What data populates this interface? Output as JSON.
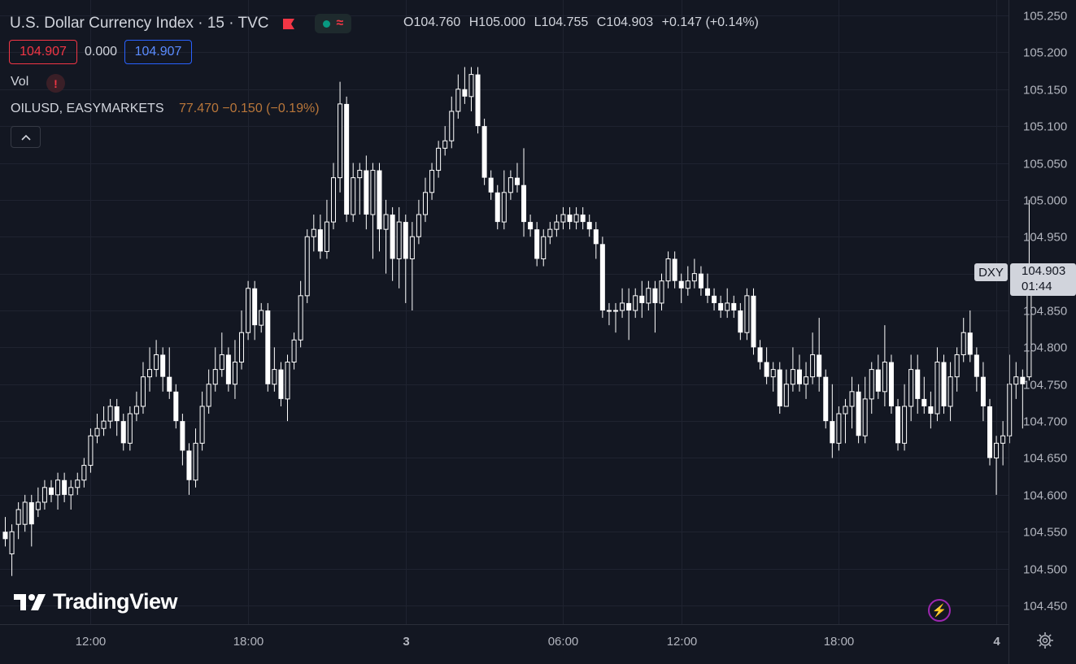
{
  "header": {
    "symbol_title": "U.S. Dollar Currency Index · 15 · TVC",
    "ohlc": {
      "open": "O104.760",
      "high": "H105.000",
      "low": "L104.755",
      "close": "C104.903",
      "change": "+0.147 (+0.14%)"
    },
    "bid": "104.907",
    "spread": "0.000",
    "ask": "104.907"
  },
  "indicators": {
    "volume_label": "Vol",
    "warning_glyph": "!",
    "compare_symbol": "OILUSD, EASYMARKETS",
    "compare_values": "77.470 −0.150 (−0.19%)"
  },
  "branding": {
    "logo_text": "TradingView"
  },
  "price_scale": {
    "symbol_tag": "DXY",
    "last_price": "104.903",
    "countdown": "01:44"
  },
  "colors": {
    "background": "#131722",
    "candle": "#ffffff",
    "grid": "#1e222d",
    "text": "#d1d4dc",
    "bearish_accent": "#f23645",
    "blue_accent": "#2962ff",
    "oil": "#b8763a"
  },
  "icons": [
    "flag-icon",
    "wave-icon",
    "warning-icon",
    "chevron-up-icon",
    "tradingview-logo-icon",
    "lightning-icon",
    "gear-icon"
  ],
  "chart_data": {
    "type": "candlestick",
    "title": "U.S. Dollar Currency Index · 15 · TVC",
    "ylim": [
      104.43,
      105.27
    ],
    "yticks": [
      104.45,
      104.5,
      104.55,
      104.6,
      104.65,
      104.7,
      104.75,
      104.8,
      104.85,
      104.9,
      104.95,
      105.0,
      105.05,
      105.1,
      105.15,
      105.2,
      105.25
    ],
    "ytick_labels": [
      "104.450",
      "104.500",
      "104.550",
      "104.600",
      "104.650",
      "104.700",
      "104.750",
      "104.800",
      "104.850",
      "104.900",
      "104.950",
      "105.000",
      "105.050",
      "105.100",
      "105.150",
      "105.200",
      "105.250"
    ],
    "xticks": [
      {
        "index": 13,
        "label": "12:00"
      },
      {
        "index": 37,
        "label": "18:00"
      },
      {
        "index": 61,
        "label": "3"
      },
      {
        "index": 85,
        "label": "06:00"
      },
      {
        "index": 103,
        "label": "12:00"
      },
      {
        "index": 127,
        "label": "18:00"
      },
      {
        "index": 151,
        "label": "4"
      }
    ],
    "candles": [
      [
        104.55,
        104.54,
        104.57,
        104.53
      ],
      [
        104.52,
        104.55,
        104.56,
        104.49
      ],
      [
        104.56,
        104.58,
        104.59,
        104.54
      ],
      [
        104.56,
        104.59,
        104.6,
        104.55
      ],
      [
        104.59,
        104.56,
        104.6,
        104.53
      ],
      [
        104.58,
        104.59,
        104.61,
        104.57
      ],
      [
        104.59,
        104.61,
        104.62,
        104.58
      ],
      [
        104.61,
        104.6,
        104.62,
        104.59
      ],
      [
        104.6,
        104.62,
        104.63,
        104.58
      ],
      [
        104.62,
        104.6,
        104.63,
        104.59
      ],
      [
        104.6,
        104.61,
        104.62,
        104.58
      ],
      [
        104.61,
        104.62,
        104.63,
        104.6
      ],
      [
        104.62,
        104.64,
        104.65,
        104.61
      ],
      [
        104.64,
        104.68,
        104.69,
        104.63
      ],
      [
        104.68,
        104.69,
        104.71,
        104.67
      ],
      [
        104.69,
        104.7,
        104.72,
        104.68
      ],
      [
        104.7,
        104.72,
        104.73,
        104.69
      ],
      [
        104.72,
        104.7,
        104.73,
        104.68
      ],
      [
        104.7,
        104.67,
        104.71,
        104.66
      ],
      [
        104.67,
        104.71,
        104.72,
        104.66
      ],
      [
        104.71,
        104.72,
        104.74,
        104.7
      ],
      [
        104.72,
        104.76,
        104.78,
        104.71
      ],
      [
        104.76,
        104.77,
        104.8,
        104.74
      ],
      [
        104.77,
        104.79,
        104.81,
        104.76
      ],
      [
        104.79,
        104.76,
        104.8,
        104.74
      ],
      [
        104.76,
        104.74,
        104.8,
        104.73
      ],
      [
        104.74,
        104.7,
        104.75,
        104.69
      ],
      [
        104.7,
        104.66,
        104.71,
        104.64
      ],
      [
        104.66,
        104.62,
        104.67,
        104.6
      ],
      [
        104.62,
        104.67,
        104.69,
        104.61
      ],
      [
        104.67,
        104.72,
        104.74,
        104.66
      ],
      [
        104.72,
        104.75,
        104.77,
        104.71
      ],
      [
        104.75,
        104.77,
        104.8,
        104.74
      ],
      [
        104.77,
        104.79,
        104.82,
        104.76
      ],
      [
        104.79,
        104.75,
        104.8,
        104.74
      ],
      [
        104.75,
        104.78,
        104.81,
        104.73
      ],
      [
        104.78,
        104.82,
        104.85,
        104.77
      ],
      [
        104.82,
        104.88,
        104.89,
        104.81
      ],
      [
        104.88,
        104.83,
        104.89,
        104.81
      ],
      [
        104.83,
        104.85,
        104.86,
        104.82
      ],
      [
        104.85,
        104.75,
        104.86,
        104.74
      ],
      [
        104.75,
        104.77,
        104.8,
        104.74
      ],
      [
        104.77,
        104.73,
        104.78,
        104.72
      ],
      [
        104.73,
        104.78,
        104.79,
        104.7
      ],
      [
        104.78,
        104.81,
        104.82,
        104.77
      ],
      [
        104.81,
        104.87,
        104.89,
        104.8
      ],
      [
        104.87,
        104.95,
        104.96,
        104.86
      ],
      [
        104.95,
        104.96,
        104.98,
        104.93
      ],
      [
        104.96,
        104.93,
        104.98,
        104.92
      ],
      [
        104.93,
        104.97,
        105.0,
        104.92
      ],
      [
        104.97,
        105.03,
        105.05,
        104.96
      ],
      [
        105.03,
        105.13,
        105.16,
        105.01
      ],
      [
        105.13,
        104.98,
        105.14,
        104.97
      ],
      [
        104.98,
        105.03,
        105.05,
        104.97
      ],
      [
        105.03,
        105.04,
        105.05,
        104.98
      ],
      [
        105.04,
        104.98,
        105.06,
        104.96
      ],
      [
        104.98,
        105.04,
        105.05,
        104.92
      ],
      [
        105.04,
        104.96,
        105.05,
        104.93
      ],
      [
        104.96,
        104.98,
        105.0,
        104.9
      ],
      [
        104.98,
        104.92,
        104.99,
        104.89
      ],
      [
        104.92,
        104.97,
        104.99,
        104.88
      ],
      [
        104.97,
        104.92,
        104.98,
        104.86
      ],
      [
        104.92,
        104.95,
        104.97,
        104.85
      ],
      [
        104.95,
        104.98,
        105.0,
        104.94
      ],
      [
        104.98,
        105.01,
        105.03,
        104.97
      ],
      [
        105.01,
        105.04,
        105.05,
        105.0
      ],
      [
        105.04,
        105.07,
        105.08,
        105.03
      ],
      [
        105.07,
        105.08,
        105.1,
        105.06
      ],
      [
        105.08,
        105.12,
        105.14,
        105.07
      ],
      [
        105.12,
        105.15,
        105.17,
        105.11
      ],
      [
        105.15,
        105.14,
        105.18,
        105.13
      ],
      [
        105.14,
        105.17,
        105.18,
        105.12
      ],
      [
        105.17,
        105.1,
        105.18,
        105.09
      ],
      [
        105.1,
        105.03,
        105.11,
        105.02
      ],
      [
        105.03,
        105.01,
        105.04,
        105.0
      ],
      [
        105.01,
        104.97,
        105.02,
        104.96
      ],
      [
        104.97,
        105.01,
        105.04,
        104.96
      ],
      [
        105.01,
        105.03,
        105.04,
        105.0
      ],
      [
        105.03,
        105.02,
        105.05,
        105.01
      ],
      [
        105.02,
        104.97,
        105.07,
        104.95
      ],
      [
        104.97,
        104.96,
        104.98,
        104.95
      ],
      [
        104.96,
        104.92,
        104.97,
        104.91
      ],
      [
        104.92,
        104.95,
        104.96,
        104.91
      ],
      [
        104.95,
        104.96,
        104.97,
        104.94
      ],
      [
        104.96,
        104.97,
        104.98,
        104.95
      ],
      [
        104.97,
        104.98,
        104.99,
        104.96
      ],
      [
        104.98,
        104.97,
        104.99,
        104.96
      ],
      [
        104.97,
        104.98,
        104.99,
        104.96
      ],
      [
        104.98,
        104.97,
        104.99,
        104.96
      ],
      [
        104.97,
        104.96,
        104.98,
        104.95
      ],
      [
        104.96,
        104.94,
        104.97,
        104.92
      ],
      [
        104.94,
        104.85,
        104.95,
        104.84
      ],
      [
        104.85,
        104.85,
        104.86,
        104.83
      ],
      [
        104.85,
        104.85,
        104.86,
        104.82
      ],
      [
        104.85,
        104.86,
        104.88,
        104.84
      ],
      [
        104.86,
        104.85,
        104.88,
        104.81
      ],
      [
        104.85,
        104.87,
        104.88,
        104.84
      ],
      [
        104.87,
        104.86,
        104.89,
        104.84
      ],
      [
        104.86,
        104.88,
        104.89,
        104.85
      ],
      [
        104.88,
        104.86,
        104.89,
        104.82
      ],
      [
        104.86,
        104.89,
        104.9,
        104.85
      ],
      [
        104.89,
        104.92,
        104.93,
        104.88
      ],
      [
        104.92,
        104.89,
        104.93,
        104.88
      ],
      [
        104.89,
        104.88,
        104.9,
        104.86
      ],
      [
        104.88,
        104.89,
        104.91,
        104.87
      ],
      [
        104.89,
        104.9,
        104.92,
        104.88
      ],
      [
        104.9,
        104.88,
        104.91,
        104.87
      ],
      [
        104.88,
        104.87,
        104.9,
        104.86
      ],
      [
        104.87,
        104.86,
        104.88,
        104.85
      ],
      [
        104.86,
        104.85,
        104.87,
        104.84
      ],
      [
        104.85,
        104.86,
        104.88,
        104.84
      ],
      [
        104.86,
        104.85,
        104.87,
        104.84
      ],
      [
        104.85,
        104.82,
        104.86,
        104.81
      ],
      [
        104.82,
        104.87,
        104.88,
        104.81
      ],
      [
        104.87,
        104.8,
        104.88,
        104.79
      ],
      [
        104.8,
        104.78,
        104.81,
        104.77
      ],
      [
        104.78,
        104.76,
        104.8,
        104.75
      ],
      [
        104.76,
        104.77,
        104.78,
        104.74
      ],
      [
        104.77,
        104.72,
        104.78,
        104.71
      ],
      [
        104.72,
        104.75,
        104.77,
        104.72
      ],
      [
        104.75,
        104.77,
        104.8,
        104.74
      ],
      [
        104.77,
        104.75,
        104.79,
        104.74
      ],
      [
        104.75,
        104.76,
        104.78,
        104.73
      ],
      [
        104.76,
        104.79,
        104.82,
        104.75
      ],
      [
        104.79,
        104.76,
        104.84,
        104.74
      ],
      [
        104.76,
        104.7,
        104.77,
        104.69
      ],
      [
        104.7,
        104.67,
        104.75,
        104.65
      ],
      [
        104.67,
        104.71,
        104.72,
        104.66
      ],
      [
        104.71,
        104.72,
        104.73,
        104.67
      ],
      [
        104.72,
        104.74,
        104.76,
        104.69
      ],
      [
        104.74,
        104.68,
        104.75,
        104.67
      ],
      [
        104.68,
        104.73,
        104.76,
        104.67
      ],
      [
        104.73,
        104.77,
        104.78,
        104.71
      ],
      [
        104.77,
        104.74,
        104.79,
        104.73
      ],
      [
        104.74,
        104.78,
        104.83,
        104.72
      ],
      [
        104.78,
        104.72,
        104.79,
        104.71
      ],
      [
        104.72,
        104.67,
        104.73,
        104.66
      ],
      [
        104.67,
        104.72,
        104.75,
        104.66
      ],
      [
        104.72,
        104.77,
        104.79,
        104.7
      ],
      [
        104.77,
        104.73,
        104.79,
        104.71
      ],
      [
        104.73,
        104.72,
        104.76,
        104.71
      ],
      [
        104.72,
        104.71,
        104.74,
        104.69
      ],
      [
        104.71,
        104.78,
        104.8,
        104.7
      ],
      [
        104.78,
        104.72,
        104.79,
        104.71
      ],
      [
        104.72,
        104.76,
        104.78,
        104.7
      ],
      [
        104.76,
        104.79,
        104.8,
        104.74
      ],
      [
        104.79,
        104.82,
        104.84,
        104.78
      ],
      [
        104.82,
        104.79,
        104.85,
        104.78
      ],
      [
        104.79,
        104.76,
        104.8,
        104.74
      ],
      [
        104.76,
        104.72,
        104.78,
        104.7
      ],
      [
        104.72,
        104.65,
        104.73,
        104.64
      ],
      [
        104.65,
        104.67,
        104.68,
        104.6
      ],
      [
        104.67,
        104.68,
        104.7,
        104.64
      ],
      [
        104.68,
        104.75,
        104.79,
        104.67
      ],
      [
        104.75,
        104.76,
        104.78,
        104.73
      ],
      [
        104.76,
        104.75,
        104.77,
        104.69
      ],
      [
        104.76,
        104.9,
        105.0,
        104.755
      ]
    ]
  }
}
